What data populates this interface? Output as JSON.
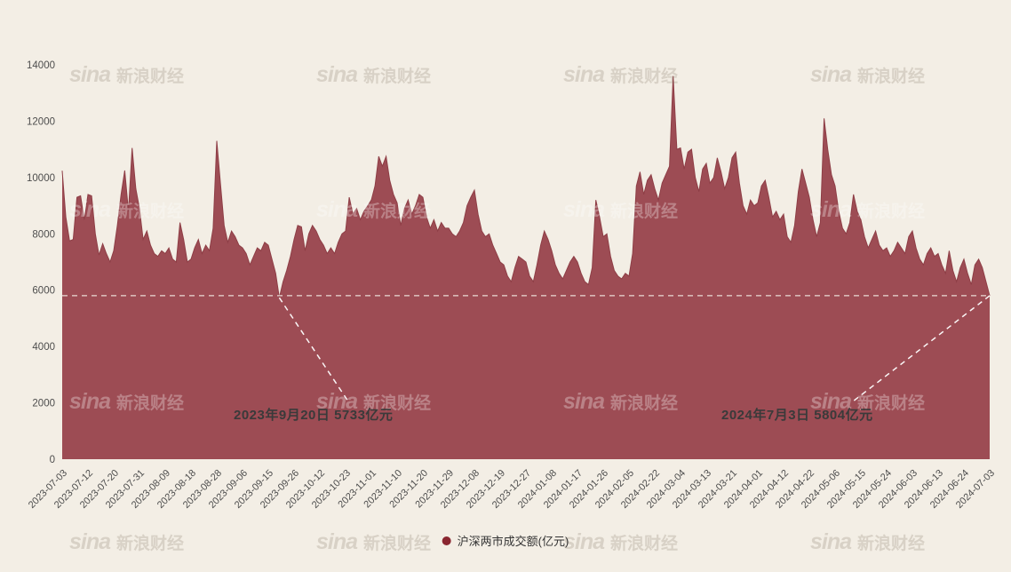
{
  "chart_data": {
    "type": "area",
    "title": "",
    "series_name": "沪深两市成交额(亿元)",
    "xlabel": "",
    "ylabel": "",
    "ylim": [
      0,
      14000
    ],
    "yticks": [
      0,
      2000,
      4000,
      6000,
      8000,
      10000,
      12000,
      14000
    ],
    "grid": false,
    "legend_position": "bottom",
    "background_color": "#f3eee5",
    "area_color": "#9d4c54",
    "line_color": "#8e3e46",
    "dashed_line_value": 5804,
    "x_tick_labels": [
      "2023-07-03",
      "2023-07-12",
      "2023-07-20",
      "2023-07-31",
      "2023-08-09",
      "2023-08-18",
      "2023-08-28",
      "2023-09-06",
      "2023-09-15",
      "2023-09-26",
      "2023-10-12",
      "2023-10-23",
      "2023-11-01",
      "2023-11-10",
      "2023-11-20",
      "2023-11-29",
      "2023-12-08",
      "2023-12-19",
      "2023-12-27",
      "2024-01-08",
      "2024-01-17",
      "2024-01-26",
      "2024-02-05",
      "2024-02-22",
      "2024-03-04",
      "2024-03-13",
      "2024-03-21",
      "2024-04-01",
      "2024-04-12",
      "2024-04-22",
      "2024-05-06",
      "2024-05-15",
      "2024-05-24",
      "2024-06-03",
      "2024-06-13",
      "2024-06-24",
      "2024-07-03"
    ],
    "values": [
      10240,
      8600,
      7750,
      7800,
      9300,
      9350,
      8500,
      9400,
      9350,
      8000,
      7250,
      7650,
      7300,
      7000,
      7400,
      8300,
      9400,
      10250,
      8800,
      11050,
      9600,
      8900,
      7800,
      8100,
      7600,
      7300,
      7200,
      7400,
      7300,
      7500,
      7100,
      7000,
      8400,
      7800,
      7000,
      7100,
      7500,
      7800,
      7300,
      7600,
      7400,
      8200,
      11300,
      9800,
      8300,
      7700,
      8100,
      7900,
      7600,
      7500,
      7300,
      6900,
      7200,
      7500,
      7400,
      7700,
      7600,
      7100,
      6600,
      5733,
      6300,
      6700,
      7200,
      7800,
      8300,
      8250,
      7400,
      8000,
      8300,
      8100,
      7800,
      7600,
      7300,
      7500,
      7300,
      7700,
      8000,
      8100,
      9300,
      8700,
      8900,
      8500,
      8800,
      9000,
      9200,
      9700,
      10750,
      10400,
      10750,
      9900,
      9400,
      9100,
      8300,
      8900,
      9200,
      8700,
      9000,
      9400,
      9300,
      8600,
      8200,
      8500,
      8100,
      8400,
      8200,
      8200,
      8000,
      7900,
      8100,
      8400,
      9000,
      9300,
      9550,
      8700,
      8100,
      7900,
      8000,
      7600,
      7300,
      7000,
      6900,
      6500,
      6300,
      6800,
      7200,
      7100,
      7000,
      6500,
      6300,
      6900,
      7600,
      8100,
      7800,
      7400,
      6900,
      6600,
      6400,
      6700,
      7000,
      7200,
      7000,
      6600,
      6300,
      6200,
      6800,
      9200,
      8600,
      7900,
      8000,
      7200,
      6700,
      6500,
      6400,
      6600,
      6500,
      7300,
      9700,
      10200,
      9400,
      9900,
      10100,
      9600,
      9200,
      9800,
      10100,
      10400,
      13600,
      11000,
      11050,
      10300,
      10900,
      11000,
      10000,
      9500,
      10300,
      10500,
      9800,
      10000,
      10700,
      10200,
      9600,
      10000,
      10700,
      10900,
      9800,
      9000,
      8700,
      9200,
      9000,
      9100,
      9700,
      9900,
      9300,
      8600,
      8800,
      8500,
      8700,
      7900,
      7700,
      8300,
      9500,
      10300,
      9800,
      9300,
      8500,
      7900,
      8400,
      12100,
      11000,
      10100,
      9700,
      8800,
      8200,
      8000,
      8400,
      9400,
      8800,
      8500,
      7900,
      7500,
      7800,
      8100,
      7600,
      7400,
      7500,
      7200,
      7400,
      7700,
      7500,
      7300,
      7900,
      8100,
      7500,
      7100,
      6900,
      7300,
      7500,
      7200,
      7300,
      6900,
      6600,
      7400,
      6700,
      6300,
      6800,
      7100,
      6600,
      6200,
      6900,
      7100,
      6800,
      6300,
      5804
    ],
    "annotations": [
      {
        "text": "2023年9月20日 5733亿元",
        "point_index": 59,
        "value": 5733
      },
      {
        "text": "2024年7月3日 5804亿元",
        "point_index": 252,
        "value": 5804
      }
    ]
  },
  "legend": {
    "label": "沪深两市成交额(亿元)",
    "marker_color": "#8a2630"
  },
  "watermark": {
    "sina": "sina",
    "cn": "新浪财经"
  }
}
